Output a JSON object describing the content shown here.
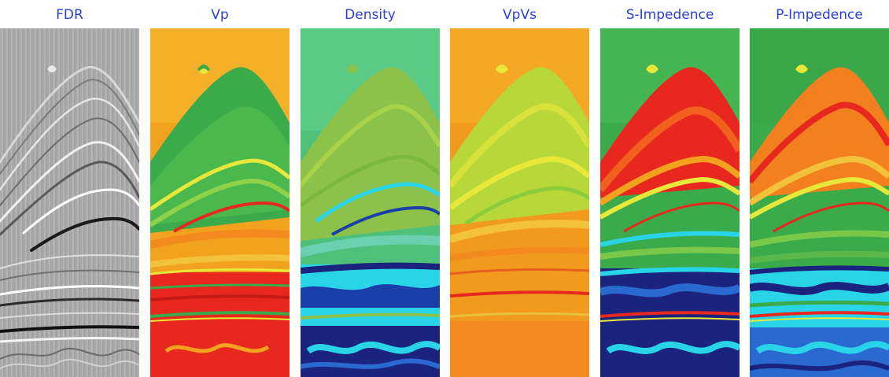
{
  "panels": [
    {
      "title": "FDR",
      "scheme": "grayscale-seismic"
    },
    {
      "title": "Vp",
      "scheme": "jet-colormap"
    },
    {
      "title": "Density",
      "scheme": "jet-colormap"
    },
    {
      "title": "VpVs",
      "scheme": "jet-colormap"
    },
    {
      "title": "S-Impedence",
      "scheme": "jet-colormap"
    },
    {
      "title": "P-Impedence",
      "scheme": "jet-colormap"
    }
  ],
  "colors": {
    "title_text": "#2a3fd6",
    "jet_blue": "#1a237e",
    "jet_cyan": "#2ad4e8",
    "jet_green": "#3aaa4a",
    "jet_yellow": "#e8e83a",
    "jet_orange": "#f2a21e",
    "jet_red": "#e8281e"
  }
}
